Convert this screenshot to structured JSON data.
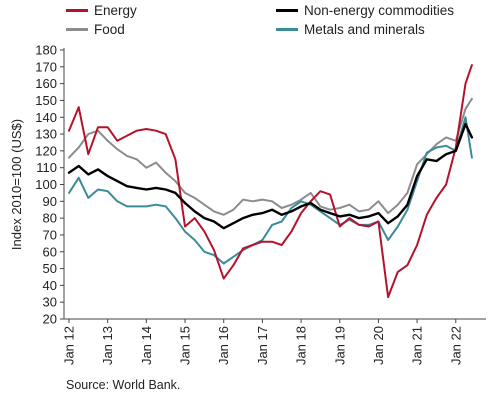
{
  "chart_data": {
    "type": "line",
    "ylabel": "Index 2010=100 (US$)",
    "ylim": [
      20,
      180
    ],
    "yticks": [
      20,
      30,
      40,
      50,
      60,
      70,
      80,
      90,
      100,
      110,
      120,
      130,
      140,
      150,
      160,
      170,
      180
    ],
    "xticks": [
      "Jan 12",
      "Jan 13",
      "Jan 14",
      "Jan 15",
      "Jan 16",
      "Jan 17",
      "Jan 18",
      "Jan 19",
      "Jan 20",
      "Jan 21",
      "Jan 22"
    ],
    "grid": false,
    "legend_position": "top",
    "x": [
      "2012-01",
      "2012-04",
      "2012-07",
      "2012-10",
      "2013-01",
      "2013-04",
      "2013-07",
      "2013-10",
      "2014-01",
      "2014-04",
      "2014-07",
      "2014-10",
      "2015-01",
      "2015-04",
      "2015-07",
      "2015-10",
      "2016-01",
      "2016-04",
      "2016-07",
      "2016-10",
      "2017-01",
      "2017-04",
      "2017-07",
      "2017-10",
      "2018-01",
      "2018-04",
      "2018-07",
      "2018-10",
      "2019-01",
      "2019-04",
      "2019-07",
      "2019-10",
      "2020-01",
      "2020-04",
      "2020-07",
      "2020-10",
      "2021-01",
      "2021-04",
      "2021-07",
      "2021-10",
      "2022-01",
      "2022-04",
      "2022-06"
    ],
    "series": [
      {
        "name": "Energy",
        "color": "#b5122d",
        "values": [
          132,
          146,
          118,
          134,
          134,
          126,
          129,
          132,
          133,
          132,
          130,
          115,
          75,
          80,
          72,
          61,
          44,
          52,
          62,
          64,
          66,
          66,
          64,
          72,
          83,
          90,
          96,
          94,
          75,
          80,
          76,
          75,
          78,
          33,
          48,
          52,
          64,
          82,
          92,
          100,
          122,
          160,
          171
        ]
      },
      {
        "name": "Non-energy commodities",
        "color": "#000000",
        "values": [
          107,
          111,
          106,
          109,
          105,
          102,
          99,
          98,
          97,
          98,
          97,
          95,
          89,
          84,
          80,
          78,
          74,
          77,
          80,
          82,
          83,
          85,
          82,
          84,
          87,
          89,
          85,
          83,
          81,
          82,
          80,
          81,
          83,
          77,
          81,
          88,
          105,
          115,
          114,
          118,
          120,
          136,
          128
        ]
      },
      {
        "name": "Food",
        "color": "#8c8c8c",
        "values": [
          116,
          122,
          130,
          132,
          126,
          121,
          117,
          115,
          110,
          113,
          107,
          102,
          95,
          92,
          88,
          84,
          82,
          85,
          91,
          90,
          91,
          90,
          86,
          88,
          91,
          95,
          87,
          85,
          86,
          88,
          84,
          85,
          90,
          83,
          88,
          95,
          112,
          118,
          124,
          128,
          126,
          145,
          151
        ]
      },
      {
        "name": "Metals and minerals",
        "color": "#3a8c98",
        "values": [
          95,
          104,
          92,
          97,
          96,
          90,
          87,
          87,
          87,
          88,
          87,
          80,
          72,
          67,
          60,
          58,
          53,
          57,
          61,
          64,
          67,
          76,
          78,
          86,
          90,
          88,
          84,
          80,
          76,
          79,
          76,
          76,
          78,
          67,
          75,
          85,
          102,
          119,
          122,
          123,
          120,
          140,
          116
        ]
      }
    ]
  },
  "source": "Source: World Bank."
}
